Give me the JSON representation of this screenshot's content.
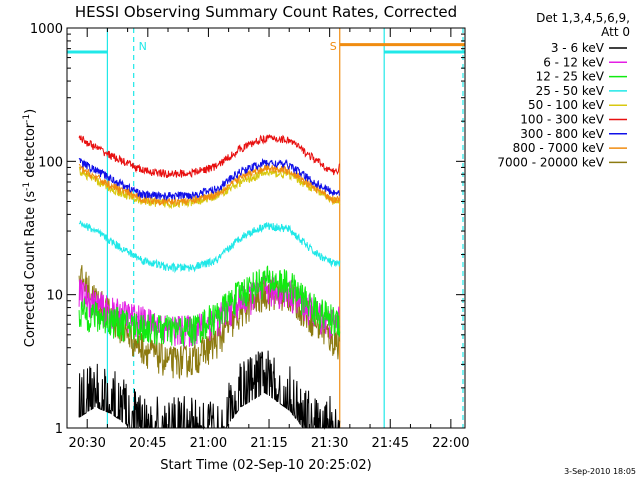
{
  "chart_data": {
    "type": "line",
    "title": "HESSI Observing Summary Count Rates, Corrected",
    "xlabel": "Start Time (02-Sep-10 20:25:02)",
    "ylabel_main": "Corrected Count Rate (s",
    "ylabel_sup1": "-1",
    "ylabel_mid": " detector",
    "ylabel_sup2": "-1",
    "ylabel_end": ")",
    "y_scale": "log",
    "ylim": [
      1,
      1000
    ],
    "xlim_minutes": [
      25.0,
      123.5
    ],
    "x_ticks": [
      {
        "label": "20:30",
        "min": 30
      },
      {
        "label": "20:45",
        "min": 45
      },
      {
        "label": "21:00",
        "min": 60
      },
      {
        "label": "21:15",
        "min": 75
      },
      {
        "label": "21:30",
        "min": 90
      },
      {
        "label": "21:45",
        "min": 105
      },
      {
        "label": "22:00",
        "min": 120
      }
    ],
    "y_ticks": [
      {
        "label": "1",
        "value": 1
      },
      {
        "label": "10",
        "value": 10
      },
      {
        "label": "100",
        "value": 100
      },
      {
        "label": "1000",
        "value": 1000
      }
    ],
    "legend_header": [
      "Det 1,3,4,5,6,9,",
      "Att 0"
    ],
    "legend_placement": "right",
    "timestamp": "3-Sep-2010 18:05",
    "series": [
      {
        "name": "3 - 6 keV",
        "color": "#000000",
        "x": [
          28,
          32,
          36,
          40,
          44,
          50,
          56,
          62,
          68,
          74,
          80,
          86,
          91,
          92.5
        ],
        "y": [
          1.5,
          1.8,
          1.6,
          1.3,
          1,
          1,
          1,
          1,
          1.8,
          2.3,
          1.7,
          1,
          1,
          1
        ]
      },
      {
        "name": "6 - 12 keV",
        "color": "#e41ee4",
        "x": [
          28,
          32,
          36,
          40,
          44,
          50,
          56,
          62,
          68,
          74,
          80,
          86,
          91,
          92.5
        ],
        "y": [
          10.5,
          8.5,
          7.5,
          7,
          6.4,
          5.5,
          5.5,
          6.5,
          9,
          11,
          10.5,
          7.5,
          6,
          6.5
        ]
      },
      {
        "name": "12 - 25 keV",
        "color": "#10ea10",
        "x": [
          28,
          32,
          36,
          40,
          44,
          50,
          56,
          62,
          68,
          74,
          80,
          86,
          91,
          92.5
        ],
        "y": [
          7.5,
          7,
          6.5,
          6,
          5.8,
          5.5,
          5.5,
          7,
          10.5,
          13,
          12,
          8,
          6.5,
          6.5
        ]
      },
      {
        "name": "25 - 50 keV",
        "color": "#20e8e8",
        "x": [
          28,
          32,
          36,
          40,
          44,
          50,
          56,
          62,
          68,
          74,
          80,
          86,
          91,
          92.5
        ],
        "y": [
          35,
          30,
          25,
          21,
          18,
          16,
          16,
          18,
          27,
          33,
          31,
          21,
          17,
          17
        ]
      },
      {
        "name": "50 - 100 keV",
        "color": "#d8c810",
        "x": [
          28,
          32,
          36,
          40,
          44,
          50,
          56,
          62,
          68,
          74,
          80,
          86,
          91,
          92.5
        ],
        "y": [
          85,
          72,
          62,
          55,
          50,
          48,
          49,
          55,
          70,
          82,
          80,
          62,
          50,
          50
        ]
      },
      {
        "name": "100 - 300 keV",
        "color": "#e81010",
        "x": [
          28,
          32,
          36,
          40,
          44,
          50,
          56,
          62,
          68,
          74,
          80,
          86,
          91,
          92.5
        ],
        "y": [
          150,
          128,
          110,
          96,
          85,
          80,
          82,
          92,
          125,
          150,
          145,
          105,
          82,
          90
        ]
      },
      {
        "name": "300 - 800 keV",
        "color": "#1010e8",
        "x": [
          28,
          32,
          36,
          40,
          44,
          50,
          56,
          62,
          68,
          74,
          80,
          86,
          91,
          92.5
        ],
        "y": [
          100,
          86,
          74,
          64,
          56,
          55,
          56,
          62,
          84,
          98,
          94,
          70,
          58,
          60
        ]
      },
      {
        "name": "800 - 7000 keV",
        "color": "#f08c10",
        "x": [
          28,
          32,
          36,
          40,
          44,
          50,
          56,
          62,
          68,
          74,
          80,
          86,
          91,
          92.5
        ],
        "y": [
          90,
          76,
          66,
          58,
          52,
          50,
          51,
          57,
          76,
          90,
          86,
          64,
          52,
          52
        ]
      },
      {
        "name": "7000 - 20000 keV",
        "color": "#8c7a10",
        "x": [
          28,
          32,
          36,
          40,
          44,
          50,
          56,
          62,
          68,
          74,
          80,
          86,
          91,
          92.5
        ],
        "y": [
          14,
          9.5,
          7,
          5,
          4,
          3.2,
          3.3,
          4.5,
          7.5,
          10.5,
          10,
          6.5,
          4.5,
          4.5
        ]
      }
    ],
    "attenuator_bars": [
      {
        "color": "#20e8e8",
        "x": [
          25.0,
          35.0
        ],
        "y": 660
      },
      {
        "color": "#f08c10",
        "x": [
          92.5,
          123.5
        ],
        "y": 750
      },
      {
        "color": "#20e8e8",
        "x": [
          103.5,
          123.5
        ],
        "y": 660
      }
    ],
    "markers": [
      {
        "text": "N",
        "color": "#20e8e8",
        "min": 41.5
      },
      {
        "text": "S",
        "color": "#f08c10",
        "min": 92.5
      }
    ],
    "vertical_lines": [
      {
        "color": "#20e8e8",
        "min": 35.0,
        "style": "solid"
      },
      {
        "color": "#20e8e8",
        "min": 41.5,
        "style": "dashed"
      },
      {
        "color": "#f08c10",
        "min": 92.5,
        "style": "solid"
      },
      {
        "color": "#20e8e8",
        "min": 103.5,
        "style": "solid"
      },
      {
        "color": "#20e8e8",
        "min": 123.0,
        "style": "dashed"
      }
    ]
  }
}
